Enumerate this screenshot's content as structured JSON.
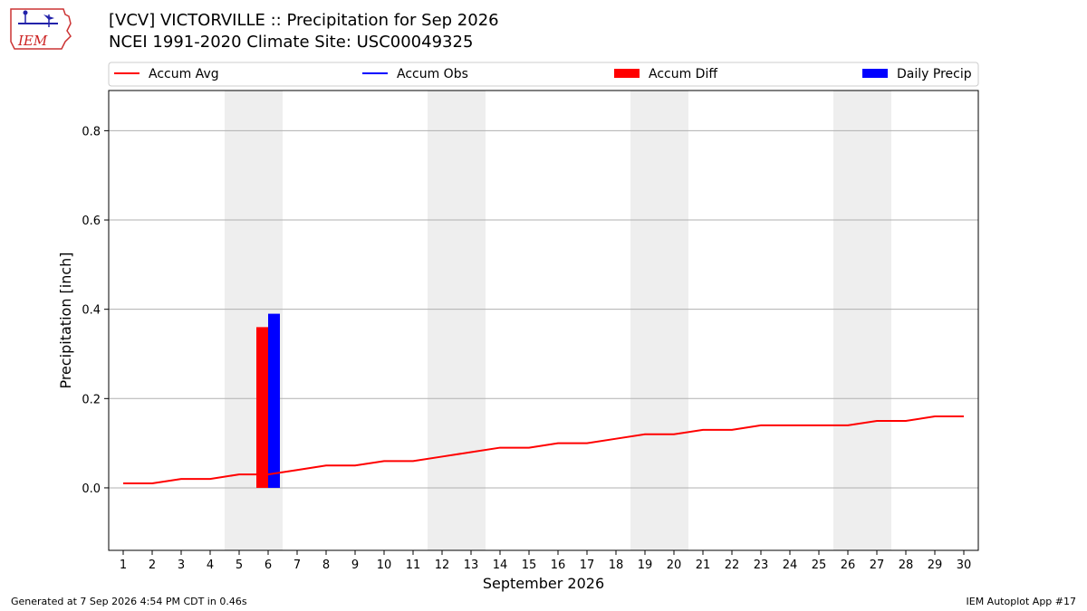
{
  "header": {
    "title_line1": "[VCV] VICTORVILLE :: Precipitation for Sep 2026",
    "title_line2": "NCEI 1991-2020 Climate Site: USC00049325",
    "logo_text": "IEM"
  },
  "footer": {
    "generated": "Generated at 7 Sep 2026 4:54 PM CDT in 0.46s",
    "app": "IEM Autoplot App #17"
  },
  "chart_data": {
    "type": "line",
    "xlabel": "September 2026",
    "ylabel": "Precipitation [inch]",
    "ylim": [
      -0.14,
      0.89
    ],
    "xlim": [
      0.5,
      30.5
    ],
    "yticks": [
      0.0,
      0.2,
      0.4,
      0.6,
      0.8
    ],
    "ytick_labels": [
      "0.0",
      "0.2",
      "0.4",
      "0.6",
      "0.8"
    ],
    "x": [
      1,
      2,
      3,
      4,
      5,
      6,
      7,
      8,
      9,
      10,
      11,
      12,
      13,
      14,
      15,
      16,
      17,
      18,
      19,
      20,
      21,
      22,
      23,
      24,
      25,
      26,
      27,
      28,
      29,
      30
    ],
    "grid": "horizontal",
    "legend": {
      "position": "top",
      "entries": [
        {
          "label": "Accum Avg",
          "kind": "line",
          "color": "#ff0000"
        },
        {
          "label": "Accum Obs",
          "kind": "line",
          "color": "#0000ff"
        },
        {
          "label": "Accum Diff",
          "kind": "bar",
          "color": "#ff0000"
        },
        {
          "label": "Daily Precip",
          "kind": "bar",
          "color": "#0000ff"
        }
      ]
    },
    "weekend_shading": [
      [
        5,
        6
      ],
      [
        12,
        13
      ],
      [
        19,
        20
      ],
      [
        26,
        27
      ]
    ],
    "series": [
      {
        "name": "Accum Avg",
        "kind": "line",
        "color": "#ff0000",
        "values": [
          0.01,
          0.01,
          0.02,
          0.02,
          0.03,
          0.03,
          0.04,
          0.05,
          0.05,
          0.06,
          0.06,
          0.07,
          0.08,
          0.09,
          0.09,
          0.1,
          0.1,
          0.11,
          0.12,
          0.12,
          0.13,
          0.13,
          0.14,
          0.14,
          0.14,
          0.14,
          0.15,
          0.15,
          0.16,
          0.16
        ]
      },
      {
        "name": "Accum Diff",
        "kind": "bar",
        "color": "#ff0000",
        "points": [
          {
            "x": 6,
            "value": 0.36
          }
        ]
      },
      {
        "name": "Daily Precip",
        "kind": "bar",
        "color": "#0000ff",
        "points": [
          {
            "x": 6,
            "value": 0.39
          }
        ]
      }
    ]
  }
}
